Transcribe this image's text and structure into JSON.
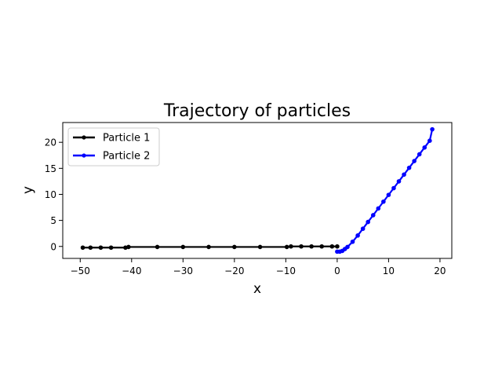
{
  "chart_data": {
    "type": "line",
    "title": "Trajectory of particles",
    "xlabel": "x",
    "ylabel": "y",
    "xlim": [
      -53.4,
      22.3
    ],
    "ylim": [
      -2.3,
      23.8
    ],
    "xticks": [
      -50,
      -40,
      -30,
      -20,
      -10,
      0,
      10,
      20
    ],
    "yticks": [
      0,
      5,
      10,
      15,
      20
    ],
    "grid": false,
    "legend_position": "upper-left",
    "series": [
      {
        "name": "Particle 1",
        "color": "#000000",
        "marker": "dot",
        "x": [
          -49.5,
          -48,
          -46,
          -44,
          -41.2,
          -40.6,
          -35,
          -30,
          -25,
          -20,
          -15,
          -9.8,
          -9.0,
          -7,
          -5,
          -3,
          -1,
          0
        ],
        "y": [
          -0.23,
          -0.23,
          -0.23,
          -0.23,
          -0.23,
          -0.1,
          -0.1,
          -0.1,
          -0.1,
          -0.1,
          -0.1,
          -0.1,
          0.0,
          0.0,
          0.0,
          0.0,
          0.0,
          0.0
        ]
      },
      {
        "name": "Particle 2",
        "color": "#0000ff",
        "marker": "dot",
        "x": [
          0,
          0.5,
          1,
          1.5,
          2,
          3,
          4,
          5,
          6,
          7,
          8,
          9,
          10,
          11,
          12,
          13,
          14,
          15,
          16,
          17,
          18,
          18.5
        ],
        "y": [
          -1.0,
          -1.0,
          -0.85,
          -0.5,
          -0.1,
          0.9,
          2.1,
          3.4,
          4.7,
          6.0,
          7.3,
          8.6,
          9.9,
          11.2,
          12.5,
          13.8,
          15.1,
          16.4,
          17.7,
          19.0,
          20.3,
          22.5
        ]
      }
    ]
  }
}
